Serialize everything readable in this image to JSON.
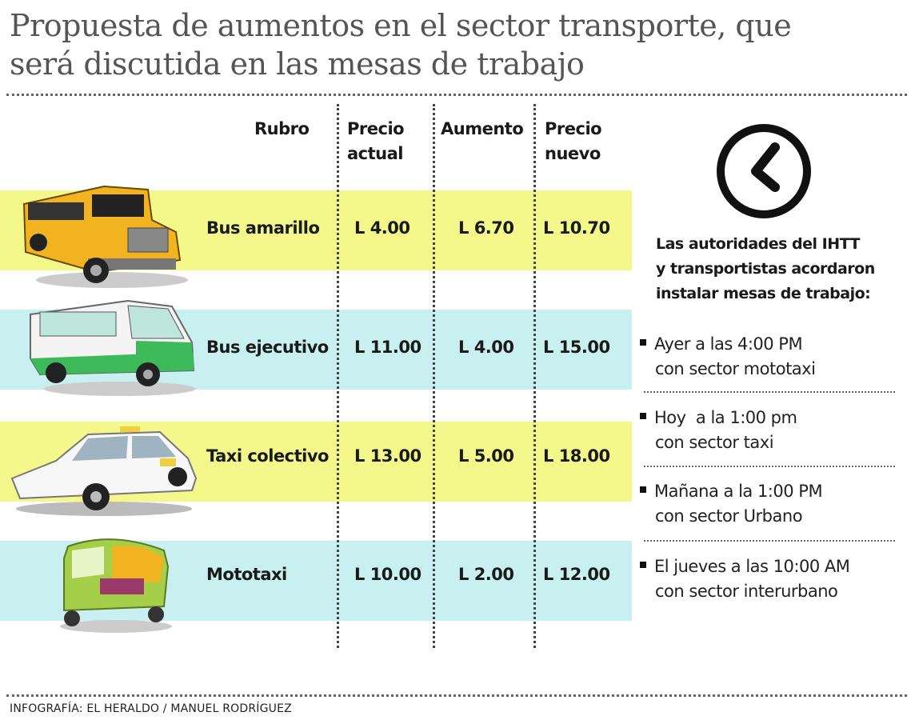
{
  "title": [
    "Propuesta de aumentos en el sector transporte, que",
    "será discutida en las mesas de trabajo"
  ],
  "table": {
    "headers": {
      "rubro": "Rubro",
      "precio_actual": [
        "Precio",
        "actual"
      ],
      "aumento": "Aumento",
      "precio_nuevo": [
        "Precio",
        "nuevo"
      ]
    },
    "rows": [
      {
        "rubro": "Bus amarillo",
        "precio_actual": "L 4.00",
        "aumento": "L 6.70",
        "precio_nuevo": "L 10.70",
        "color": "#f4f78a",
        "icon": "school-bus-icon"
      },
      {
        "rubro": "Bus ejecutivo",
        "precio_actual": "L 11.00",
        "aumento": "L 4.00",
        "precio_nuevo": "L 15.00",
        "color": "#c8f0f0",
        "icon": "minibus-icon"
      },
      {
        "rubro": "Taxi colectivo",
        "precio_actual": "L 13.00",
        "aumento": "L 5.00",
        "precio_nuevo": "L 18.00",
        "color": "#f4f78a",
        "icon": "taxi-icon"
      },
      {
        "rubro": "Mototaxi",
        "precio_actual": "L 10.00",
        "aumento": "L 2.00",
        "precio_nuevo": "L 12.00",
        "color": "#c8f0f0",
        "icon": "mototaxi-icon"
      }
    ]
  },
  "sidebar": {
    "icon": "clock-icon",
    "intro": [
      "Las autoridades del IHTT",
      "y transportistas acordaron",
      "instalar mesas de trabajo:"
    ],
    "items": [
      [
        "Ayer a las 4:00 PM",
        "con sector mototaxi"
      ],
      [
        "Hoy  a la 1:00 pm",
        "con sector taxi"
      ],
      [
        "Mañana a la 1:00 PM",
        "con sector Urbano"
      ],
      [
        "El jueves a las 10:00 AM",
        "con sector interurbano"
      ]
    ]
  },
  "footer": "INFOGRAFÍA: EL HERALDO / MANUEL RODRÍGUEZ"
}
